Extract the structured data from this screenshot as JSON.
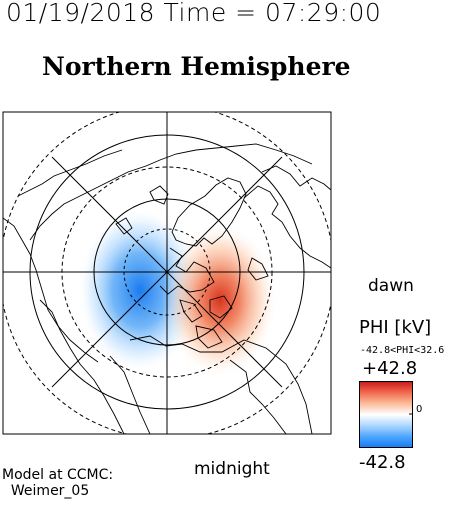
{
  "header": {
    "timestamp": "01/19/2018 Time = 07:29:00",
    "title": "Northern Hemisphere"
  },
  "map": {
    "orientation": {
      "right": "dawn",
      "bottom": "midnight"
    },
    "potential_pattern": {
      "negative_cell": "dusk side (left)",
      "positive_cell": "dawn side (right)"
    }
  },
  "colorbar": {
    "title": "PHI [kV]",
    "range_text": "-42.8<PHI<32.6",
    "max_label": "+42.8",
    "min_label": "-42.8",
    "zero_label": "0",
    "colors": {
      "max": "#cc2020",
      "mid": "#ffffff",
      "min": "#1e88ff"
    }
  },
  "footer": {
    "model_text": "Model at CCMC:\n  Weimer_05"
  }
}
